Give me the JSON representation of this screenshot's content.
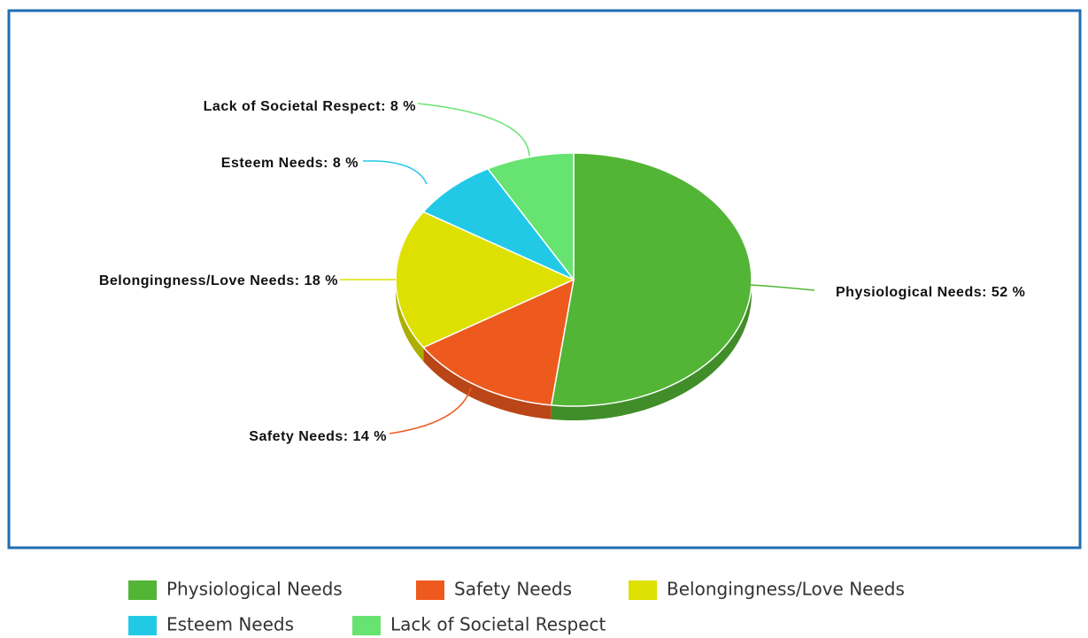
{
  "chart_data": {
    "type": "pie",
    "categories": [
      "Physiological Needs",
      "Safety Needs",
      "Belongingness/Love Needs",
      "Esteem Needs",
      "Lack of Societal Respect"
    ],
    "values": [
      52,
      14,
      18,
      8,
      8
    ],
    "value_labels": [
      "Physiological Needs: 52 %",
      "Safety Needs: 14 %",
      "Belongingness/Love Needs: 18 %",
      "Esteem Needs: 8 %",
      "Lack of Societal Respect: 8 %"
    ],
    "colors": [
      "#52b535",
      "#ee5a1e",
      "#dde000",
      "#22c9e6",
      "#66e370"
    ],
    "legend": "bottom"
  }
}
